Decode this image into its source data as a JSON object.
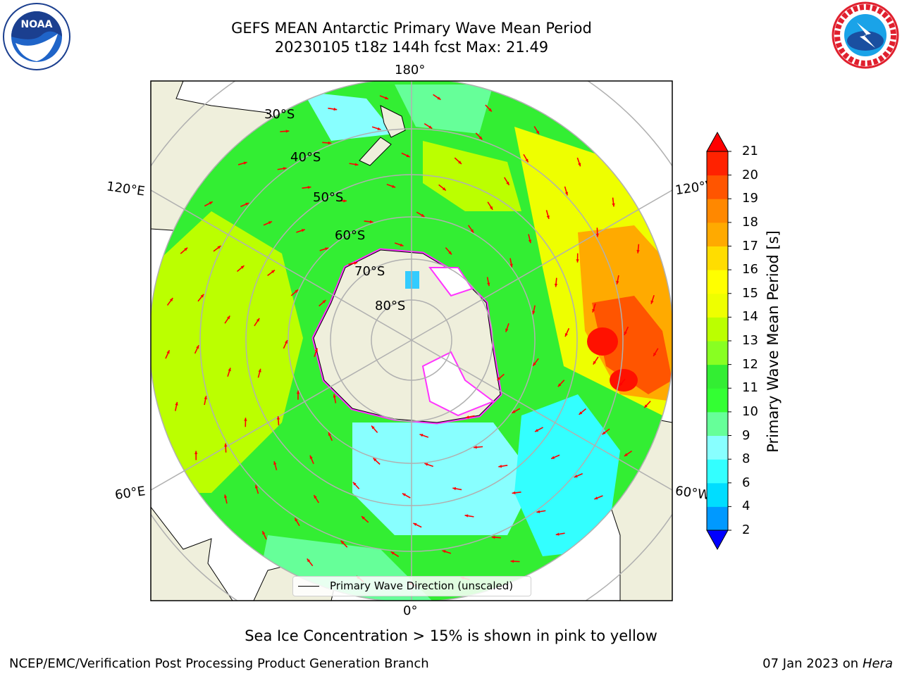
{
  "header": {
    "title_line1": "GEFS MEAN Antarctic Primary Wave Mean Period",
    "title_line2": "20230105 t18z 144h fcst   Max: 21.49"
  },
  "logos": {
    "left": "noaa-logo",
    "right": "nws-logo"
  },
  "map": {
    "projection": "south-polar-stereographic",
    "lon_labels": {
      "top": "180°",
      "bottom": "0°",
      "upper_left": "120°E",
      "upper_right": "120°W",
      "lower_left": "60°E",
      "lower_right": "60°W"
    },
    "lat_labels": [
      "30°S",
      "40°S",
      "50°S",
      "60°S",
      "70°S",
      "80°S"
    ],
    "colors": {
      "land": "#efefdc",
      "ice_edge": "#ff33ff",
      "arrows": "#ff0000",
      "grid": "#b0b0b0"
    },
    "legend_label": "Primary Wave Direction (unscaled)"
  },
  "colorbar": {
    "label": "Primary Wave Mean Period [s]",
    "ticks": [
      "2",
      "4",
      "6",
      "8",
      "9",
      "10",
      "11",
      "12",
      "13",
      "14",
      "15",
      "16",
      "17",
      "18",
      "19",
      "20",
      "21"
    ],
    "colors": [
      "#0044ff",
      "#0099ff",
      "#00ddff",
      "#33ffff",
      "#88ffff",
      "#66ff99",
      "#33ff33",
      "#33ee33",
      "#88ff22",
      "#bbff00",
      "#eeff00",
      "#ffff00",
      "#ffdd00",
      "#ffaa00",
      "#ff8800",
      "#ff5500",
      "#ff2200",
      "#ff0000"
    ]
  },
  "caption": "Sea Ice Concentration > 15% is shown in pink to yellow",
  "footer": {
    "left": "NCEP/EMC/Verification Post Processing Product Generation Branch",
    "right_prefix": "07 Jan 2023 on ",
    "right_italic": "Hera"
  }
}
